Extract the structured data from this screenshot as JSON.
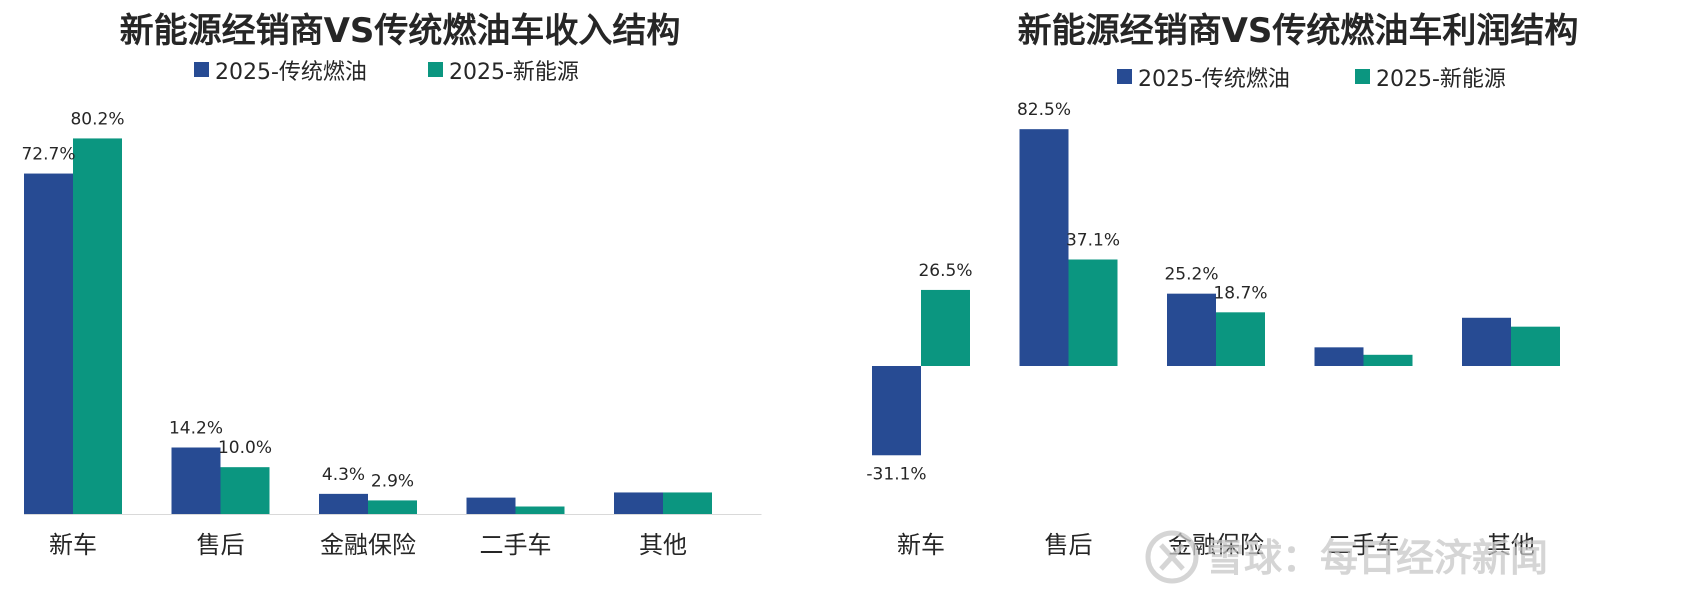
{
  "colors": {
    "traditional": "#274b93",
    "nev": "#0b9680",
    "text": "#262626",
    "axis": "#d9d9d9"
  },
  "watermark": {
    "text": "雪球：每日经济新闻"
  },
  "chart_data": [
    {
      "type": "bar",
      "title": "新能源经销商VS传统燃油车收入结构",
      "categories": [
        "新车",
        "售后",
        "金融保险",
        "二手车",
        "其他"
      ],
      "series": [
        {
          "name": "2025-传统燃油",
          "values": [
            72.7,
            14.2,
            4.3,
            3.5,
            4.6
          ],
          "labels": [
            "72.7%",
            "14.2%",
            "4.3%",
            "",
            ""
          ]
        },
        {
          "name": "2025-新能源",
          "values": [
            80.2,
            10.0,
            2.9,
            1.6,
            4.6
          ],
          "labels": [
            "80.2%",
            "10.0%",
            "2.9%",
            "",
            ""
          ]
        }
      ],
      "ylim": [
        0,
        82
      ],
      "grid": false,
      "legend": "top-center"
    },
    {
      "type": "bar",
      "title": "新能源经销商VS传统燃油车利润结构",
      "categories": [
        "新车",
        "售后",
        "金融保险",
        "二手车",
        "其他"
      ],
      "series": [
        {
          "name": "2025-传统燃油",
          "values": [
            -31.1,
            82.5,
            25.2,
            6.5,
            16.8
          ],
          "labels": [
            "-31.1%",
            "82.5%",
            "25.2%",
            "",
            ""
          ]
        },
        {
          "name": "2025-新能源",
          "values": [
            26.5,
            37.1,
            18.7,
            3.9,
            13.7
          ],
          "labels": [
            "26.5%",
            "37.1%",
            "18.7%",
            "",
            ""
          ]
        }
      ],
      "ylim": [
        -50,
        85
      ],
      "grid": false,
      "legend": "top-center"
    }
  ]
}
